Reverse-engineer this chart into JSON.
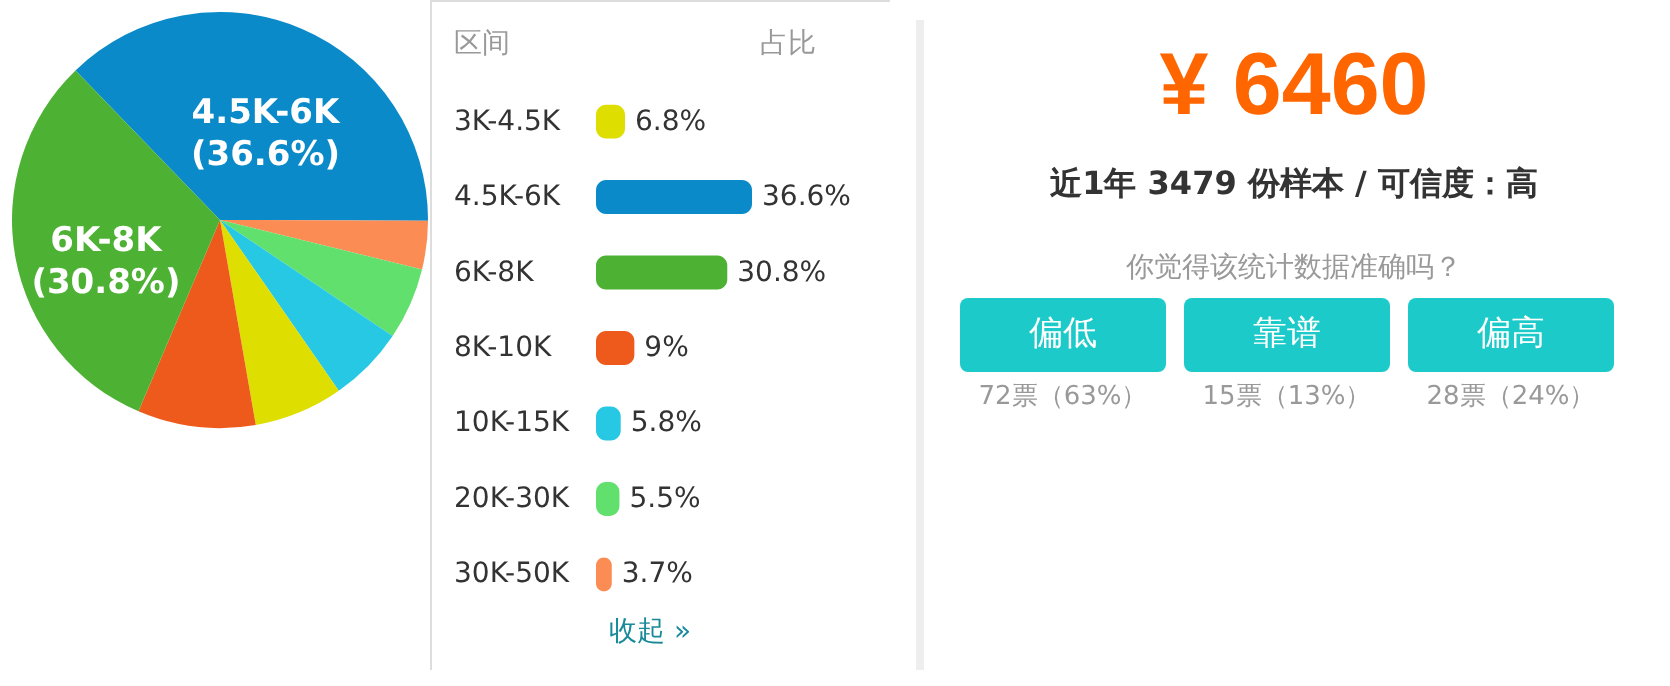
{
  "chart_data": [
    {
      "type": "pie",
      "categories": [
        "4.5K-6K",
        null,
        null,
        null,
        null,
        null,
        "6K-8K"
      ],
      "values": [
        36.6,
        3.7,
        5.5,
        5.8,
        6.8,
        9,
        30.8
      ],
      "colors": [
        "#0a8ac8",
        "#fb8c54",
        "#62e06e",
        "#26c8e4",
        "#dede00",
        "#ee5a1c",
        "#4db134"
      ],
      "value_labels": [
        "(36.6%)",
        null,
        null,
        null,
        null,
        null,
        "(30.8%)"
      ]
    },
    {
      "type": "bar",
      "orientation": "horizontal",
      "ylabel": "区间",
      "annotations": [
        "占比",
        "收起 »"
      ],
      "categories": [
        "3K-4.5K",
        "4.5K-6K",
        "6K-8K",
        "8K-10K",
        "10K-15K",
        "20K-30K",
        "30K-50K"
      ],
      "values": [
        6.8,
        36.6,
        30.8,
        9,
        5.8,
        5.5,
        3.7
      ],
      "colors": [
        "#dede00",
        "#0a8ac8",
        "#4db134",
        "#ee5a1c",
        "#26c8e4",
        "#62e06e",
        "#fb8c54"
      ],
      "value_labels": [
        "6.8%",
        "36.6%",
        "30.8%",
        "9%",
        "5.8%",
        "5.5%",
        "3.7%"
      ]
    },
    {
      "type": "other",
      "title": "¥ 6460",
      "subtitle": "近1年 3479 份样本 / 可信度：高",
      "annotations": [
        "你觉得该统计数据准确吗？",
        "偏低",
        "靠谱",
        "偏高",
        "72票（63%）",
        "15票（13%）",
        "28票（24%）"
      ]
    }
  ]
}
